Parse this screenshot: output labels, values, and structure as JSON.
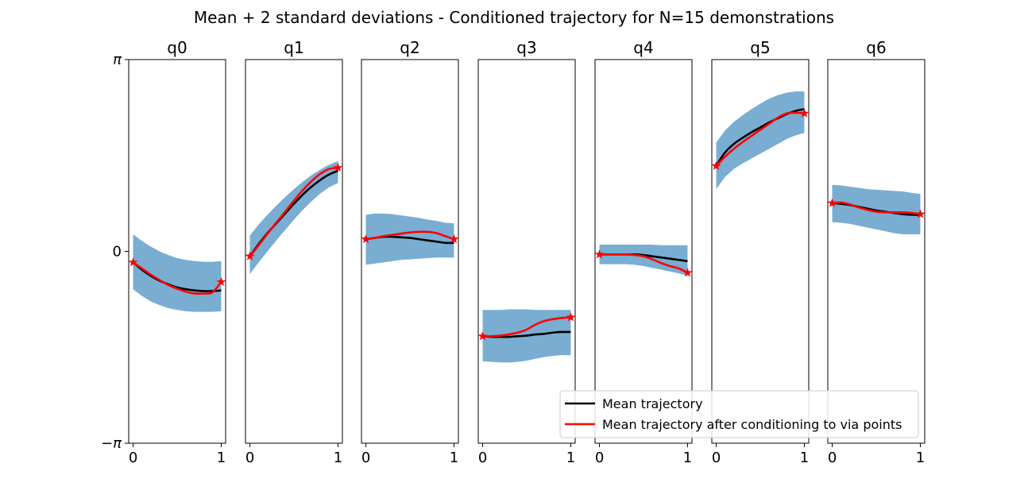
{
  "chart_data": {
    "type": "line",
    "title": "Mean + 2 standard deviations - Conditioned trajectory for N=15 demonstrations",
    "ylim": [
      -3.1416,
      3.1416
    ],
    "yticks": [
      {
        "value": 3.1416,
        "label": "π"
      },
      {
        "value": 0,
        "label": "0"
      },
      {
        "value": -3.1416,
        "label": "−π"
      }
    ],
    "xlim": [
      -0.05,
      1.05
    ],
    "xticks": [
      {
        "value": 0,
        "label": "0"
      },
      {
        "value": 1,
        "label": "1"
      }
    ],
    "legend": {
      "placement": "lower-right",
      "entries": [
        {
          "label": "Mean trajectory",
          "color": "#000000"
        },
        {
          "label": "Mean trajectory after conditioning to via points",
          "color": "#ff0000"
        }
      ]
    },
    "band_color": "#1f77b4",
    "band_opacity": 0.6,
    "x": [
      0,
      0.1,
      0.2,
      0.3,
      0.4,
      0.5,
      0.6,
      0.7,
      0.8,
      0.9,
      1.0
    ],
    "subplots": [
      {
        "title": "q0",
        "mean": [
          -0.18,
          -0.3,
          -0.4,
          -0.48,
          -0.54,
          -0.59,
          -0.62,
          -0.64,
          -0.65,
          -0.65,
          -0.64
        ],
        "upper": [
          0.28,
          0.17,
          0.08,
          0.0,
          -0.06,
          -0.11,
          -0.14,
          -0.16,
          -0.17,
          -0.17,
          -0.16
        ],
        "lower": [
          -0.62,
          -0.73,
          -0.82,
          -0.88,
          -0.93,
          -0.96,
          -0.98,
          -0.99,
          -0.99,
          -0.99,
          -0.98
        ],
        "conditioned": [
          -0.18,
          -0.28,
          -0.38,
          -0.47,
          -0.55,
          -0.61,
          -0.66,
          -0.69,
          -0.69,
          -0.67,
          -0.5
        ],
        "via_points": [
          {
            "x": 0,
            "y": -0.18
          },
          {
            "x": 1,
            "y": -0.5
          }
        ]
      },
      {
        "title": "q1",
        "mean": [
          -0.08,
          0.12,
          0.3,
          0.46,
          0.62,
          0.78,
          0.93,
          1.06,
          1.17,
          1.26,
          1.32
        ],
        "upper": [
          0.26,
          0.44,
          0.6,
          0.75,
          0.89,
          1.02,
          1.14,
          1.25,
          1.34,
          1.42,
          1.48
        ],
        "lower": [
          -0.37,
          -0.18,
          0.0,
          0.18,
          0.35,
          0.52,
          0.68,
          0.82,
          0.95,
          1.05,
          1.12
        ],
        "conditioned": [
          -0.08,
          0.1,
          0.29,
          0.47,
          0.65,
          0.83,
          1.0,
          1.15,
          1.27,
          1.35,
          1.37
        ],
        "via_points": [
          {
            "x": 0,
            "y": -0.08
          },
          {
            "x": 1,
            "y": 1.37
          }
        ]
      },
      {
        "title": "q2",
        "mean": [
          0.2,
          0.22,
          0.24,
          0.24,
          0.23,
          0.22,
          0.2,
          0.18,
          0.16,
          0.14,
          0.14
        ],
        "upper": [
          0.6,
          0.62,
          0.62,
          0.61,
          0.59,
          0.57,
          0.55,
          0.52,
          0.5,
          0.47,
          0.46
        ],
        "lower": [
          -0.22,
          -0.2,
          -0.18,
          -0.16,
          -0.14,
          -0.13,
          -0.12,
          -0.11,
          -0.1,
          -0.1,
          -0.1
        ],
        "conditioned": [
          0.2,
          0.22,
          0.25,
          0.27,
          0.29,
          0.31,
          0.32,
          0.32,
          0.3,
          0.25,
          0.2
        ],
        "via_points": [
          {
            "x": 0,
            "y": 0.2
          },
          {
            "x": 1,
            "y": 0.2
          }
        ]
      },
      {
        "title": "q3",
        "mean": [
          -1.39,
          -1.4,
          -1.4,
          -1.4,
          -1.39,
          -1.38,
          -1.36,
          -1.35,
          -1.33,
          -1.32,
          -1.32
        ],
        "upper": [
          -0.96,
          -0.96,
          -0.96,
          -0.95,
          -0.95,
          -0.95,
          -0.96,
          -0.96,
          -0.96,
          -0.96,
          -0.96
        ],
        "lower": [
          -1.8,
          -1.81,
          -1.82,
          -1.82,
          -1.81,
          -1.79,
          -1.76,
          -1.73,
          -1.71,
          -1.7,
          -1.7
        ],
        "conditioned": [
          -1.39,
          -1.39,
          -1.38,
          -1.36,
          -1.33,
          -1.28,
          -1.2,
          -1.14,
          -1.11,
          -1.09,
          -1.08
        ],
        "via_points": [
          {
            "x": 0,
            "y": -1.39
          },
          {
            "x": 1,
            "y": -1.08
          }
        ]
      },
      {
        "title": "q4",
        "mean": [
          -0.05,
          -0.05,
          -0.05,
          -0.05,
          -0.05,
          -0.06,
          -0.08,
          -0.1,
          -0.12,
          -0.14,
          -0.16
        ],
        "upper": [
          0.11,
          0.11,
          0.11,
          0.11,
          0.11,
          0.11,
          0.11,
          0.1,
          0.1,
          0.1,
          0.1
        ],
        "lower": [
          -0.21,
          -0.21,
          -0.21,
          -0.21,
          -0.22,
          -0.24,
          -0.27,
          -0.3,
          -0.33,
          -0.36,
          -0.4
        ],
        "conditioned": [
          -0.05,
          -0.05,
          -0.05,
          -0.05,
          -0.06,
          -0.08,
          -0.13,
          -0.19,
          -0.24,
          -0.28,
          -0.35
        ],
        "via_points": [
          {
            "x": 0,
            "y": -0.05
          },
          {
            "x": 1,
            "y": -0.35
          }
        ]
      },
      {
        "title": "q5",
        "mean": [
          1.4,
          1.62,
          1.76,
          1.86,
          1.95,
          2.03,
          2.11,
          2.18,
          2.25,
          2.3,
          2.33
        ],
        "upper": [
          1.78,
          1.98,
          2.12,
          2.23,
          2.33,
          2.42,
          2.5,
          2.56,
          2.6,
          2.62,
          2.62
        ],
        "lower": [
          1.02,
          1.22,
          1.35,
          1.44,
          1.52,
          1.6,
          1.68,
          1.76,
          1.84,
          1.9,
          1.94
        ],
        "conditioned": [
          1.4,
          1.55,
          1.68,
          1.79,
          1.89,
          1.99,
          2.09,
          2.19,
          2.26,
          2.27,
          2.26
        ],
        "via_points": [
          {
            "x": 0,
            "y": 1.4
          },
          {
            "x": 1,
            "y": 2.26
          }
        ]
      },
      {
        "title": "q6",
        "mean": [
          0.79,
          0.78,
          0.76,
          0.73,
          0.7,
          0.67,
          0.65,
          0.63,
          0.61,
          0.6,
          0.6
        ],
        "upper": [
          1.09,
          1.08,
          1.06,
          1.04,
          1.02,
          1.01,
          1.0,
          0.99,
          0.98,
          0.96,
          0.94
        ],
        "lower": [
          0.48,
          0.47,
          0.45,
          0.42,
          0.39,
          0.36,
          0.33,
          0.3,
          0.28,
          0.28,
          0.28
        ],
        "conditioned": [
          0.79,
          0.8,
          0.77,
          0.72,
          0.68,
          0.65,
          0.64,
          0.64,
          0.64,
          0.63,
          0.61
        ],
        "via_points": [
          {
            "x": 0,
            "y": 0.79
          },
          {
            "x": 1,
            "y": 0.61
          }
        ]
      }
    ]
  }
}
